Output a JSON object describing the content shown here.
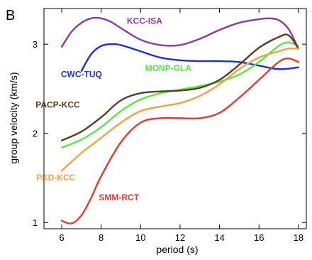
{
  "panel_letter": "B",
  "chart_data": {
    "type": "line",
    "title": "",
    "xlabel": "period (s)",
    "ylabel": "group velocity (km/s)",
    "xlim": [
      5.1,
      18.4
    ],
    "ylim": [
      0.93,
      3.4
    ],
    "xticks": [
      6,
      8,
      10,
      12,
      14,
      16,
      18
    ],
    "xtick_labels": [
      "6",
      "8",
      "10",
      "12",
      "14",
      "16",
      "18"
    ],
    "yticks": [
      1,
      2,
      3
    ],
    "ytick_labels": [
      "1",
      "2",
      "3"
    ],
    "grid": false,
    "legend": "labels placed next to each curve",
    "series": [
      {
        "name": "KCC-ISA",
        "color": "#8c3a9e",
        "x": [
          6,
          6.5,
          7,
          7.5,
          8,
          8.5,
          9,
          10,
          11,
          12,
          13,
          14,
          15,
          16,
          16.5,
          17,
          17.5,
          18
        ],
        "y": [
          2.97,
          3.14,
          3.24,
          3.29,
          3.29,
          3.25,
          3.18,
          3.05,
          2.99,
          2.99,
          3.06,
          3.16,
          3.24,
          3.28,
          3.29,
          3.27,
          3.17,
          2.95
        ]
      },
      {
        "name": "CWC-TUQ",
        "color": "#1d2fcf",
        "x": [
          7,
          7.5,
          8,
          8.5,
          9,
          10,
          11,
          12,
          13,
          14,
          15,
          16,
          17,
          18
        ],
        "y": [
          2.7,
          2.89,
          2.98,
          3.0,
          2.99,
          2.92,
          2.85,
          2.82,
          2.81,
          2.81,
          2.8,
          2.76,
          2.72,
          2.74
        ]
      },
      {
        "name": "MONP-GLA",
        "color": "#5ce34b",
        "x": [
          6,
          7,
          8,
          9,
          10,
          11,
          12,
          13,
          14,
          15,
          16,
          17,
          17.5,
          18
        ],
        "y": [
          1.84,
          1.93,
          2.07,
          2.25,
          2.38,
          2.45,
          2.49,
          2.53,
          2.58,
          2.66,
          2.8,
          2.98,
          3.02,
          2.98
        ]
      },
      {
        "name": "PACP-KCC",
        "color": "#5b3d24",
        "x": [
          6,
          7,
          8,
          9,
          10,
          11,
          12,
          13,
          14,
          15,
          16,
          17,
          17.5,
          18
        ],
        "y": [
          1.92,
          2.02,
          2.18,
          2.37,
          2.45,
          2.47,
          2.48,
          2.51,
          2.6,
          2.77,
          2.96,
          3.08,
          3.1,
          2.95
        ]
      },
      {
        "name": "PKD-KCC",
        "color": "#f0a346",
        "x": [
          6,
          7,
          8,
          9,
          10,
          11,
          12,
          13,
          14,
          15,
          16,
          17,
          17.5,
          18
        ],
        "y": [
          1.58,
          1.78,
          1.95,
          2.12,
          2.25,
          2.3,
          2.34,
          2.42,
          2.55,
          2.72,
          2.85,
          2.92,
          2.95,
          2.95
        ]
      },
      {
        "name": "SMM-RCT",
        "color": "#df3a33",
        "x": [
          6,
          6.5,
          7,
          7.5,
          8,
          9,
          10,
          11,
          12,
          13,
          14,
          15,
          16,
          17,
          17.5,
          18
        ],
        "y": [
          1.02,
          0.99,
          1.08,
          1.28,
          1.52,
          1.9,
          2.12,
          2.17,
          2.17,
          2.17,
          2.23,
          2.4,
          2.6,
          2.8,
          2.84,
          2.8
        ]
      }
    ]
  }
}
